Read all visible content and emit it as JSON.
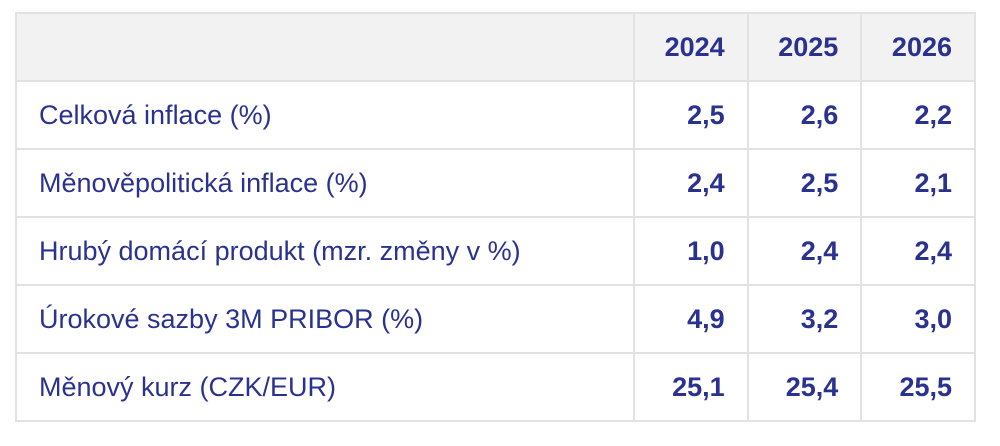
{
  "table": {
    "columns": [
      "2024",
      "2025",
      "2026"
    ],
    "rows": [
      {
        "label": "Celková inflace (%)",
        "values": [
          "2,5",
          "2,6",
          "2,2"
        ]
      },
      {
        "label": "Měnověpolitická inflace (%)",
        "values": [
          "2,4",
          "2,5",
          "2,1"
        ]
      },
      {
        "label": "Hrubý domácí produkt (mzr. změny v %)",
        "values": [
          "1,0",
          "2,4",
          "2,4"
        ]
      },
      {
        "label": "Úrokové sazby 3M PRIBOR (%)",
        "values": [
          "4,9",
          "3,2",
          "3,0"
        ]
      },
      {
        "label": "Měnový kurz (CZK/EUR)",
        "values": [
          "25,1",
          "25,4",
          "25,5"
        ]
      }
    ]
  }
}
